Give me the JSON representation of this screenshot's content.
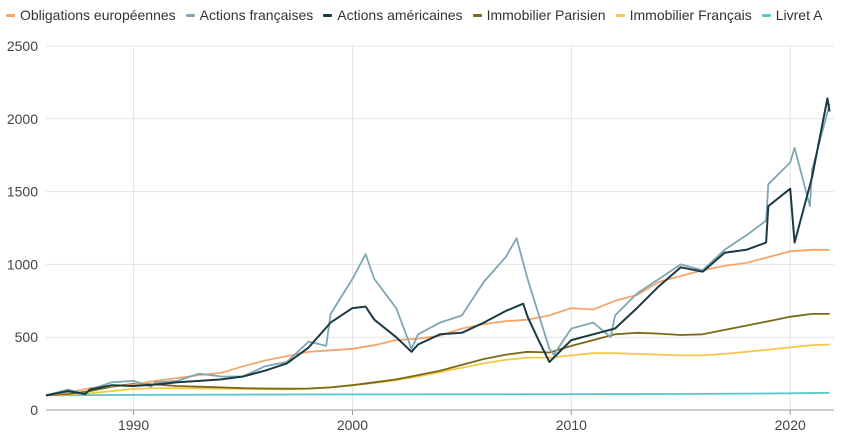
{
  "chart_data": {
    "type": "line",
    "title": "",
    "xlabel": "",
    "ylabel": "",
    "xlim": [
      1986,
      2022
    ],
    "ylim": [
      0,
      2500
    ],
    "x_ticks": [
      1990,
      2000,
      2010,
      2020
    ],
    "y_ticks": [
      0,
      500,
      1000,
      1500,
      2000,
      2500
    ],
    "grid": true,
    "legend_position": "top-left",
    "series": [
      {
        "name": "Obligations européennes",
        "color": "#f5a66a",
        "x": [
          1986,
          1987,
          1988,
          1989,
          1990,
          1991,
          1992,
          1993,
          1994,
          1995,
          1996,
          1997,
          1998,
          1999,
          2000,
          2001,
          2002,
          2003,
          2004,
          2005,
          2006,
          2007,
          2008,
          2009,
          2010,
          2011,
          2012,
          2013,
          2014,
          2015,
          2016,
          2017,
          2018,
          2019,
          2020,
          2021,
          2021.8
        ],
        "y": [
          100,
          120,
          150,
          165,
          175,
          200,
          220,
          240,
          255,
          300,
          340,
          370,
          400,
          410,
          420,
          445,
          480,
          490,
          510,
          560,
          590,
          610,
          620,
          650,
          700,
          690,
          750,
          790,
          880,
          920,
          960,
          990,
          1010,
          1050,
          1090,
          1100,
          1100
        ]
      },
      {
        "name": "Actions françaises",
        "color": "#7fa6b3",
        "x": [
          1986,
          1987,
          1987.8,
          1988,
          1989,
          1990,
          1990.8,
          1991,
          1992,
          1993,
          1994,
          1995,
          1996,
          1997,
          1998,
          1998.8,
          1999,
          2000,
          2000.6,
          2001,
          2002,
          2002.7,
          2003,
          2004,
          2005,
          2006,
          2007,
          2007.5,
          2008,
          2009,
          2009.2,
          2010,
          2011,
          2011.8,
          2012,
          2013,
          2014,
          2015,
          2016,
          2017,
          2018,
          2018.9,
          2019,
          2020,
          2020.2,
          2020.9,
          2021,
          2021.8
        ],
        "y": [
          100,
          140,
          110,
          140,
          190,
          200,
          160,
          190,
          200,
          250,
          230,
          230,
          300,
          330,
          470,
          440,
          660,
          900,
          1070,
          900,
          700,
          420,
          520,
          600,
          650,
          880,
          1050,
          1180,
          900,
          420,
          380,
          560,
          600,
          500,
          650,
          800,
          900,
          1000,
          960,
          1100,
          1200,
          1300,
          1550,
          1700,
          1800,
          1400,
          1650,
          2100
        ]
      },
      {
        "name": "Actions américaines",
        "color": "#1b3a44",
        "x": [
          1986,
          1987,
          1987.8,
          1988,
          1989,
          1990,
          1991,
          1992,
          1993,
          1994,
          1995,
          1996,
          1997,
          1998,
          1999,
          2000,
          2000.6,
          2001,
          2002,
          2002.7,
          2003,
          2004,
          2005,
          2006,
          2007,
          2007.8,
          2008,
          2008.5,
          2009,
          2010,
          2011,
          2012,
          2013,
          2014,
          2015,
          2016,
          2017,
          2018,
          2018.9,
          2019,
          2020,
          2020.2,
          2021,
          2021.7,
          2021.8
        ],
        "y": [
          100,
          130,
          110,
          140,
          170,
          165,
          175,
          190,
          200,
          210,
          230,
          270,
          320,
          430,
          600,
          700,
          710,
          620,
          500,
          400,
          450,
          520,
          530,
          600,
          680,
          730,
          640,
          480,
          330,
          480,
          520,
          560,
          700,
          850,
          980,
          950,
          1080,
          1100,
          1150,
          1400,
          1520,
          1150,
          1600,
          2140,
          2050
        ]
      },
      {
        "name": "Immobilier Parisien",
        "color": "#7a6a17",
        "x": [
          1986,
          1987,
          1988,
          1989,
          1990,
          1991,
          1992,
          1993,
          1994,
          1995,
          1996,
          1997,
          1998,
          1999,
          2000,
          2001,
          2002,
          2003,
          2004,
          2005,
          2006,
          2007,
          2008,
          2009,
          2010,
          2011,
          2012,
          2013,
          2014,
          2015,
          2016,
          2017,
          2018,
          2019,
          2020,
          2021,
          2021.8
        ],
        "y": [
          100,
          110,
          130,
          160,
          180,
          175,
          165,
          160,
          155,
          150,
          148,
          146,
          148,
          155,
          170,
          190,
          210,
          240,
          270,
          310,
          350,
          380,
          400,
          395,
          440,
          480,
          520,
          530,
          525,
          515,
          520,
          550,
          580,
          610,
          640,
          660,
          660
        ]
      },
      {
        "name": "Immobilier Français",
        "color": "#f2c94c",
        "x": [
          1986,
          1987,
          1988,
          1989,
          1990,
          1991,
          1992,
          1993,
          1994,
          1995,
          1996,
          1997,
          1998,
          1999,
          2000,
          2001,
          2002,
          2003,
          2004,
          2005,
          2006,
          2007,
          2008,
          2009,
          2010,
          2011,
          2012,
          2013,
          2014,
          2015,
          2016,
          2017,
          2018,
          2019,
          2020,
          2021,
          2021.8
        ],
        "y": [
          100,
          105,
          115,
          130,
          145,
          150,
          150,
          148,
          146,
          145,
          143,
          142,
          145,
          155,
          170,
          185,
          205,
          230,
          260,
          290,
          320,
          345,
          360,
          360,
          375,
          390,
          390,
          385,
          380,
          375,
          375,
          385,
          400,
          415,
          430,
          445,
          450
        ]
      },
      {
        "name": "Livret A",
        "color": "#5ec6c8",
        "x": [
          1986,
          1990,
          1995,
          2000,
          2005,
          2010,
          2015,
          2020,
          2021.8
        ],
        "y": [
          100,
          104,
          106,
          107,
          108,
          109,
          110,
          115,
          118
        ]
      }
    ]
  }
}
